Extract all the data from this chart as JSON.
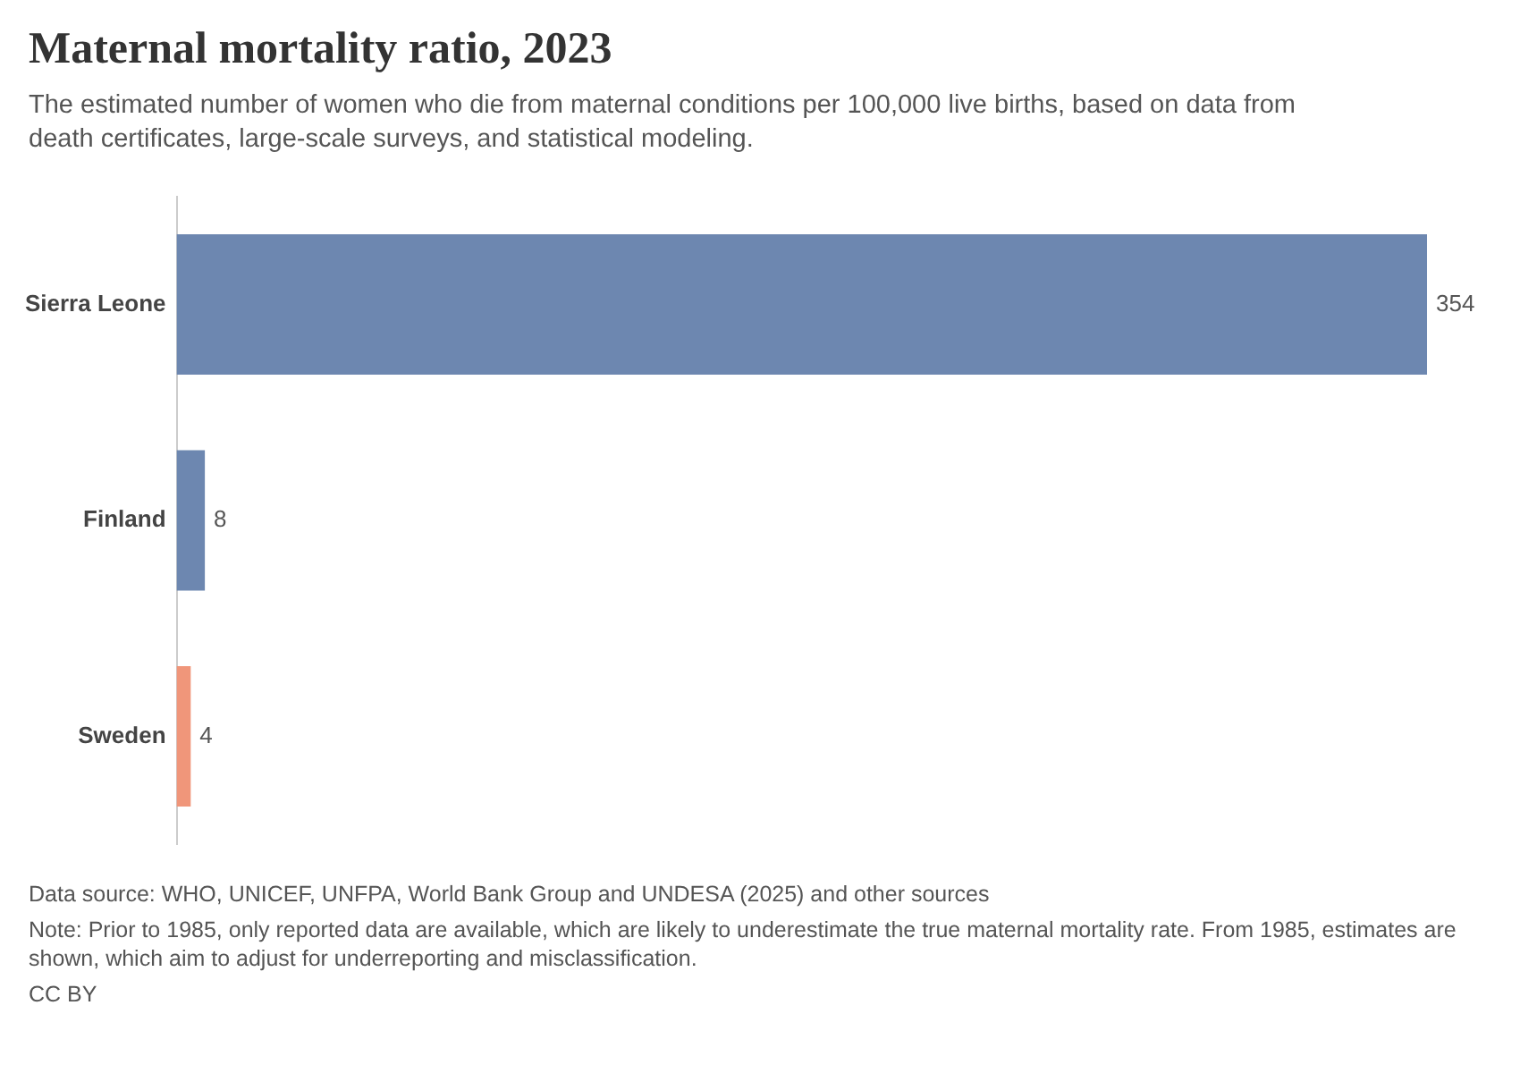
{
  "chart_data": {
    "type": "bar",
    "orientation": "horizontal",
    "title": "Maternal mortality ratio, 2023",
    "subtitle": "The estimated number of women who die from maternal conditions per 100,000 live births, based on data from death certificates, large-scale surveys, and statistical modeling.",
    "categories": [
      "Sierra Leone",
      "Finland",
      "Sweden"
    ],
    "values": [
      354,
      8,
      4
    ],
    "colors": [
      "#6d87b0",
      "#6d87b0",
      "#f0967a"
    ],
    "data_labels": true,
    "grid": false,
    "legend": false,
    "tick_labels": "y",
    "annotations": [
      "Data source: WHO, UNICEF, UNFPA, World Bank Group and UNDESA (2025) and other sources",
      "Note: Prior to 1985, only reported data are available, which are likely to underestimate the true maternal mortality rate. From 1985, estimates are shown, which aim to adjust for underreporting and misclassification.",
      "CC BY"
    ]
  }
}
